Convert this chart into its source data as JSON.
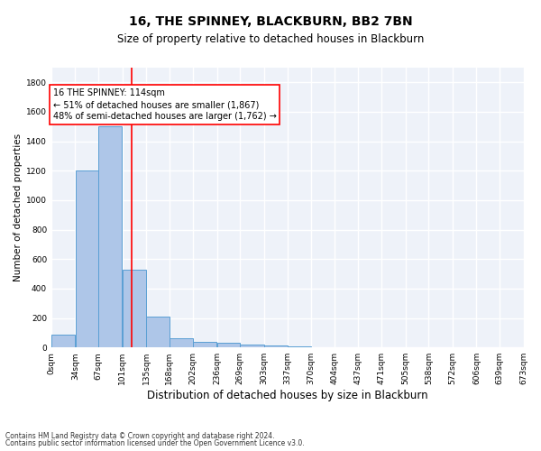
{
  "title": "16, THE SPINNEY, BLACKBURN, BB2 7BN",
  "subtitle": "Size of property relative to detached houses in Blackburn",
  "xlabel": "Distribution of detached houses by size in Blackburn",
  "ylabel": "Number of detached properties",
  "footnote1": "Contains HM Land Registry data © Crown copyright and database right 2024.",
  "footnote2": "Contains public sector information licensed under the Open Government Licence v3.0.",
  "bar_values": [
    90,
    1200,
    1500,
    530,
    210,
    65,
    38,
    30,
    20,
    15,
    5,
    2,
    1,
    0,
    0,
    0,
    0,
    0,
    0,
    0
  ],
  "bin_edges": [
    0,
    34,
    67,
    101,
    135,
    168,
    202,
    236,
    269,
    303,
    337,
    370,
    404,
    437,
    471,
    505,
    538,
    572,
    606,
    639,
    673
  ],
  "bar_color": "#aec6e8",
  "bar_edge_color": "#5a9fd4",
  "red_line_x": 114,
  "annotation_line1": "16 THE SPINNEY: 114sqm",
  "annotation_line2": "← 51% of detached houses are smaller (1,867)",
  "annotation_line3": "48% of semi-detached houses are larger (1,762) →",
  "annotation_box_color": "white",
  "annotation_box_edge": "red",
  "ylim": [
    0,
    1900
  ],
  "yticks": [
    0,
    200,
    400,
    600,
    800,
    1000,
    1200,
    1400,
    1600,
    1800
  ],
  "background_color": "#eef2f9",
  "grid_color": "white",
  "title_fontsize": 10,
  "subtitle_fontsize": 8.5,
  "ylabel_fontsize": 7.5,
  "xlabel_fontsize": 8.5,
  "tick_fontsize": 6.5,
  "annot_fontsize": 7,
  "footnote_fontsize": 5.5
}
